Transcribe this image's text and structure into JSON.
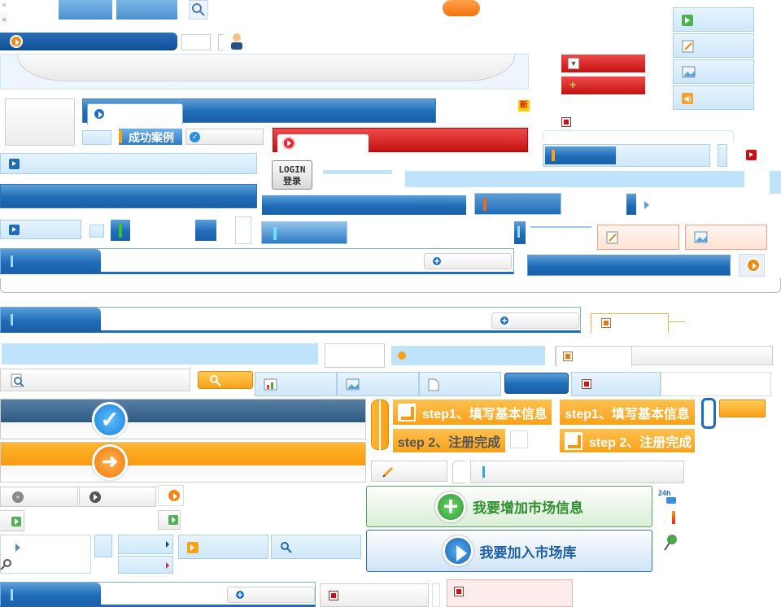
{
  "labels": {
    "success_cases": "成功案例",
    "login_en": "LOGIN",
    "login_cn": "登录",
    "step1_a": "step1、填写基本信息",
    "step1_b": "step1、填写基本信息",
    "step2_a": "step 2、注册完成",
    "step2_b": "step 2、注册完成",
    "new_badge": "新",
    "add_market_info": "我要增加市场信息",
    "join_market_db": "我要加入市场库",
    "badge_24h": "24h"
  },
  "colors": {
    "primary_blue": "#1f6cb8",
    "dark_blue": "#0e4f96",
    "light_blue": "#cfe8fa",
    "red": "#c41212",
    "orange": "#f7a11a",
    "green": "#3f9b3f"
  },
  "icons": [
    "search-icon",
    "user-icon",
    "play-icon",
    "edit-icon",
    "image-icon",
    "sound-icon",
    "close-icon",
    "add-icon",
    "check-icon",
    "arrow-right-icon",
    "pencil-icon",
    "pin-icon",
    "document-icon",
    "chart-icon"
  ]
}
